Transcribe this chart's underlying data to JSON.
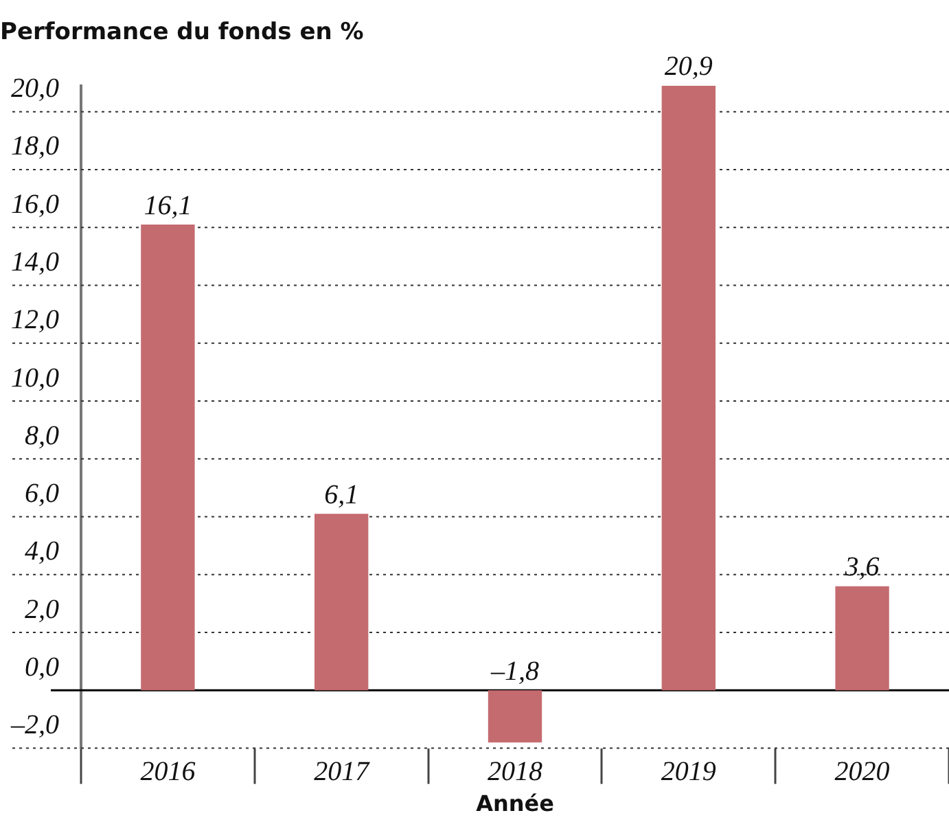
{
  "chart_data": {
    "type": "bar",
    "title": "Performance du fonds en %",
    "xlabel": "Année",
    "categories": [
      "2016",
      "2017",
      "2018",
      "2019",
      "2020"
    ],
    "values": [
      16.1,
      6.1,
      -1.8,
      20.9,
      3.6
    ],
    "value_labels": [
      "16,1",
      "6,1",
      "–1,8",
      "20,9",
      "3,6"
    ],
    "color": "#c46b70",
    "ylim": [
      -2,
      20.9
    ],
    "yticks": [
      {
        "value": -2,
        "label": "–2,0"
      },
      {
        "value": 0,
        "label": "0,0"
      },
      {
        "value": 2,
        "label": "2,0"
      },
      {
        "value": 4,
        "label": "4,0"
      },
      {
        "value": 6,
        "label": "6,0"
      },
      {
        "value": 8,
        "label": "8,0"
      },
      {
        "value": 10,
        "label": "10,0"
      },
      {
        "value": 12,
        "label": "12,0"
      },
      {
        "value": 14,
        "label": "14,0"
      },
      {
        "value": 16,
        "label": "16,0"
      },
      {
        "value": 18,
        "label": "18,0"
      },
      {
        "value": 20,
        "label": "20,0"
      }
    ],
    "grid": "y"
  }
}
